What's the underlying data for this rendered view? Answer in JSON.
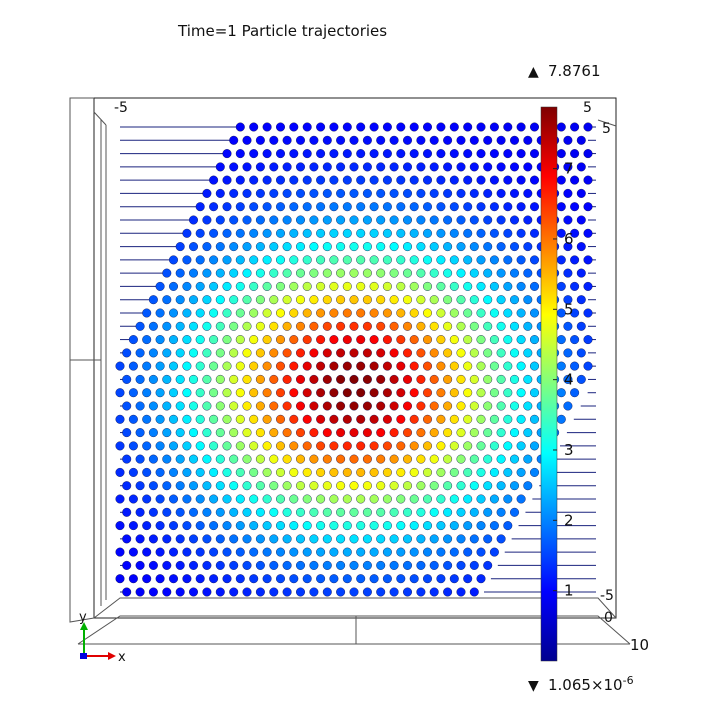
{
  "chart_data": {
    "type": "scatter",
    "title": "Time=1  Particle trajectories",
    "colorbar": {
      "max_label": "7.8761",
      "min_mantissa": "1.065×10",
      "min_exponent": "-6",
      "max": 7.8761,
      "min": 1.065e-06,
      "ticks": [
        1,
        2,
        3,
        4,
        5,
        6,
        7
      ],
      "colormap": "jet"
    },
    "axis_labels": {
      "top_left": "-5",
      "top_right": "5",
      "right_top": "5",
      "right_bottom": "-5",
      "right_zero": "0",
      "depth_end": "10"
    },
    "triad": {
      "y_label": "y",
      "x_label": "x"
    },
    "particle_grid": {
      "x_range": [
        -5,
        5
      ],
      "y_range": [
        -5,
        5
      ],
      "n_cols": 36,
      "n_rows": 36,
      "peak_x": 0,
      "peak_y": 0
    }
  }
}
